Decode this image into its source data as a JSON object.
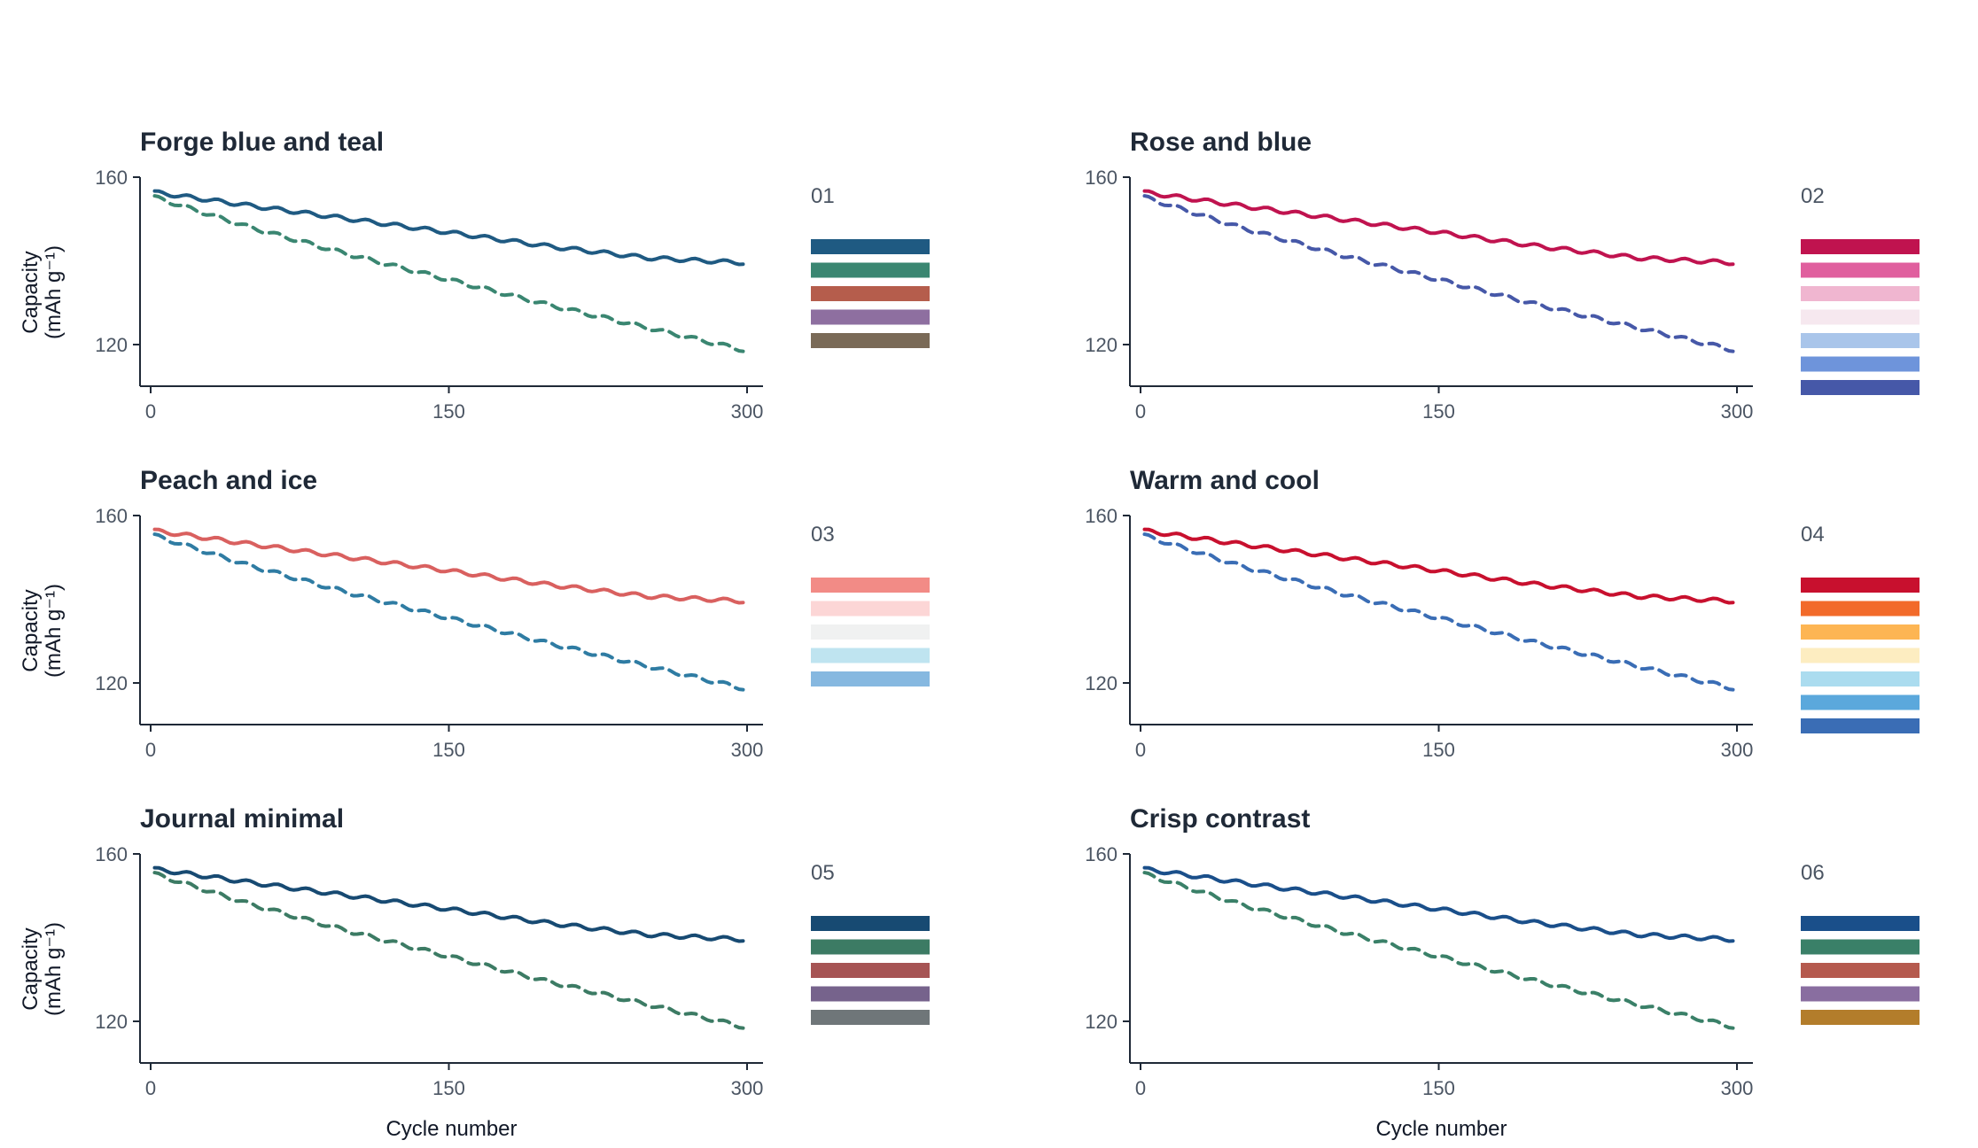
{
  "chart_data": [
    {
      "type": "line",
      "title": "Forge blue and teal",
      "palette_number": "01",
      "xlabel": "",
      "ylabel": "Capacity (mAh g⁻¹)",
      "xlim": [
        0,
        300
      ],
      "ylim": [
        110,
        160
      ],
      "x_ticks": [
        0,
        150,
        300
      ],
      "y_ticks": [
        120,
        160
      ],
      "palette": [
        "#1f5a82",
        "#3a8671",
        "#b55d4c",
        "#8e6fa0",
        "#7a6a57"
      ],
      "series": [
        {
          "style": "solid",
          "color": "#1f5a82",
          "x": [
            0,
            50,
            100,
            150,
            200,
            250,
            300
          ],
          "y": [
            156.5,
            153.2,
            150.0,
            146.8,
            143.5,
            140.7,
            139.5
          ]
        },
        {
          "style": "dashed",
          "color": "#3a8671",
          "x": [
            0,
            50,
            100,
            150,
            200,
            250,
            300
          ],
          "y": [
            155.5,
            148.0,
            141.5,
            135.5,
            129.5,
            124.0,
            118.5
          ]
        }
      ]
    },
    {
      "type": "line",
      "title": "Rose and blue",
      "palette_number": "02",
      "xlabel": "",
      "ylabel": "",
      "xlim": [
        0,
        300
      ],
      "ylim": [
        110,
        160
      ],
      "x_ticks": [
        0,
        150,
        300
      ],
      "y_ticks": [
        120,
        160
      ],
      "palette": [
        "#c0134f",
        "#e05f9e",
        "#f0b6d0",
        "#f6e8ef",
        "#a9c5ea",
        "#6e94db",
        "#4658a8"
      ],
      "series": [
        {
          "style": "solid",
          "color": "#c0134f",
          "x": [
            0,
            50,
            100,
            150,
            200,
            250,
            300
          ],
          "y": [
            156.5,
            153.2,
            150.0,
            146.8,
            143.5,
            140.7,
            139.5
          ]
        },
        {
          "style": "dashed",
          "color": "#4658a8",
          "x": [
            0,
            50,
            100,
            150,
            200,
            250,
            300
          ],
          "y": [
            155.5,
            148.0,
            141.5,
            135.5,
            129.5,
            124.0,
            118.5
          ]
        }
      ]
    },
    {
      "type": "line",
      "title": "Peach and ice",
      "palette_number": "03",
      "xlabel": "",
      "ylabel": "Capacity (mAh g⁻¹)",
      "xlim": [
        0,
        300
      ],
      "ylim": [
        110,
        160
      ],
      "x_ticks": [
        0,
        150,
        300
      ],
      "y_ticks": [
        120,
        160
      ],
      "palette": [
        "#f28b86",
        "#fcd6d6",
        "#f0f1f1",
        "#bfe4f0",
        "#86b8e0"
      ],
      "series": [
        {
          "style": "solid",
          "color": "#d9605f",
          "x": [
            0,
            50,
            100,
            150,
            200,
            250,
            300
          ],
          "y": [
            156.5,
            153.2,
            150.0,
            146.8,
            143.5,
            140.7,
            139.5
          ]
        },
        {
          "style": "dashed",
          "color": "#2f7ca3",
          "x": [
            0,
            50,
            100,
            150,
            200,
            250,
            300
          ],
          "y": [
            155.5,
            148.0,
            141.5,
            135.5,
            129.5,
            124.0,
            118.5
          ]
        }
      ]
    },
    {
      "type": "line",
      "title": "Warm and cool",
      "palette_number": "04",
      "xlabel": "",
      "ylabel": "",
      "xlim": [
        0,
        300
      ],
      "ylim": [
        110,
        160
      ],
      "x_ticks": [
        0,
        150,
        300
      ],
      "y_ticks": [
        120,
        160
      ],
      "palette": [
        "#c8102e",
        "#f26a2a",
        "#fdb553",
        "#fdedc1",
        "#abdcef",
        "#5ba8dc",
        "#3a6db5"
      ],
      "series": [
        {
          "style": "solid",
          "color": "#c8102e",
          "x": [
            0,
            50,
            100,
            150,
            200,
            250,
            300
          ],
          "y": [
            156.5,
            153.2,
            150.0,
            146.8,
            143.5,
            140.7,
            139.5
          ]
        },
        {
          "style": "dashed",
          "color": "#3a6db5",
          "x": [
            0,
            50,
            100,
            150,
            200,
            250,
            300
          ],
          "y": [
            155.5,
            148.0,
            141.5,
            135.5,
            129.5,
            124.0,
            118.5
          ]
        }
      ]
    },
    {
      "type": "line",
      "title": "Journal minimal",
      "palette_number": "05",
      "xlabel": "Cycle number",
      "ylabel": "Capacity (mAh g⁻¹)",
      "xlim": [
        0,
        300
      ],
      "ylim": [
        110,
        160
      ],
      "x_ticks": [
        0,
        150,
        300
      ],
      "y_ticks": [
        120,
        160
      ],
      "palette": [
        "#174a72",
        "#3c7b64",
        "#a65454",
        "#76638c",
        "#6f7679"
      ],
      "series": [
        {
          "style": "solid",
          "color": "#174a72",
          "x": [
            0,
            50,
            100,
            150,
            200,
            250,
            300
          ],
          "y": [
            156.5,
            153.2,
            150.0,
            146.8,
            143.5,
            140.7,
            139.5
          ]
        },
        {
          "style": "dashed",
          "color": "#3c7b64",
          "x": [
            0,
            50,
            100,
            150,
            200,
            250,
            300
          ],
          "y": [
            155.5,
            148.0,
            141.5,
            135.5,
            129.5,
            124.0,
            118.5
          ]
        }
      ]
    },
    {
      "type": "line",
      "title": "Crisp contrast",
      "palette_number": "06",
      "xlabel": "Cycle number",
      "ylabel": "",
      "xlim": [
        0,
        300
      ],
      "ylim": [
        110,
        160
      ],
      "x_ticks": [
        0,
        150,
        300
      ],
      "y_ticks": [
        120,
        160
      ],
      "palette": [
        "#1a4f8a",
        "#3a8068",
        "#b55a4e",
        "#896ea0",
        "#b37d2b"
      ],
      "series": [
        {
          "style": "solid",
          "color": "#1a4f8a",
          "x": [
            0,
            50,
            100,
            150,
            200,
            250,
            300
          ],
          "y": [
            156.5,
            153.2,
            150.0,
            146.8,
            143.5,
            140.7,
            139.5
          ]
        },
        {
          "style": "dashed",
          "color": "#3a8068",
          "x": [
            0,
            50,
            100,
            150,
            200,
            250,
            300
          ],
          "y": [
            155.5,
            148.0,
            141.5,
            135.5,
            129.5,
            124.0,
            118.5
          ]
        }
      ]
    }
  ]
}
